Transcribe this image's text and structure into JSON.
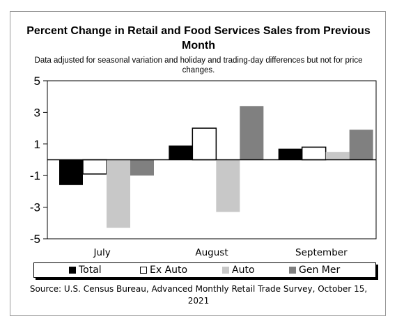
{
  "chart_data": {
    "type": "bar",
    "title": "Percent Change in Retail and Food Services Sales from Previous Month",
    "subtitle": "Data adjusted for seasonal variation and holiday and trading-day differences but not for price changes.",
    "categories": [
      "July",
      "August",
      "September"
    ],
    "series": [
      {
        "name": "Total",
        "values": [
          -1.6,
          0.9,
          0.7
        ],
        "color": "#000000"
      },
      {
        "name": "Ex Auto",
        "values": [
          -0.9,
          2.0,
          0.8
        ],
        "color": "#ffffff"
      },
      {
        "name": "Auto",
        "values": [
          -4.3,
          -3.3,
          0.5
        ],
        "color": "#c8c8c8"
      },
      {
        "name": "Gen Mer",
        "values": [
          -1.0,
          3.4,
          1.9
        ],
        "color": "#808080"
      }
    ],
    "yticks": [
      "5",
      "3",
      "1",
      "-1",
      "-3",
      "-5"
    ],
    "ylim": [
      -5,
      5
    ],
    "legend_position": "bottom",
    "source": "Source: U.S. Census Bureau, Advanced Monthly Retail Trade Survey, October 15, 2021"
  }
}
